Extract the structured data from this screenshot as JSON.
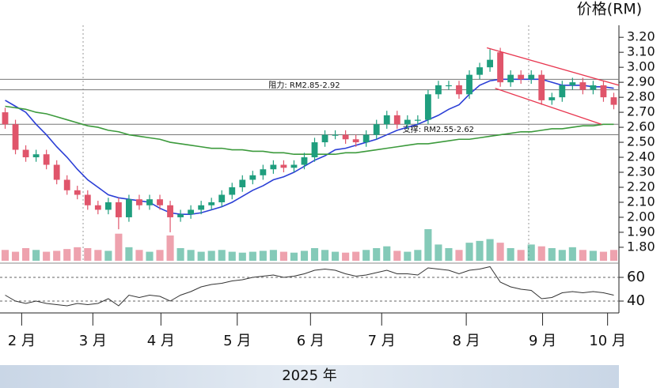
{
  "chart_data": {
    "type": "candlestick",
    "title": "价格(RM)",
    "footer": "2025 年",
    "xlim": [
      0,
      60
    ],
    "xticks": [
      {
        "value": 2.1,
        "label": "2 月"
      },
      {
        "value": 9.0,
        "label": "3 月"
      },
      {
        "value": 15.6,
        "label": "4 月"
      },
      {
        "value": 23.0,
        "label": "5 月"
      },
      {
        "value": 30.1,
        "label": "6 月"
      },
      {
        "value": 37.0,
        "label": "7 月"
      },
      {
        "value": 45.2,
        "label": "8 月"
      },
      {
        "value": 52.6,
        "label": "9 月"
      },
      {
        "value": 58.9,
        "label": "10 月"
      }
    ],
    "ylim": [
      1.71,
      3.28
    ],
    "yticks": [
      {
        "value": 1.8,
        "label": "1.80"
      },
      {
        "value": 1.9,
        "label": "1.90"
      },
      {
        "value": 2.0,
        "label": "2.00"
      },
      {
        "value": 2.1,
        "label": "2.10"
      },
      {
        "value": 2.2,
        "label": "2.20"
      },
      {
        "value": 2.3,
        "label": "2.30"
      },
      {
        "value": 2.4,
        "label": "2.40"
      },
      {
        "value": 2.5,
        "label": "2.50"
      },
      {
        "value": 2.6,
        "label": "2.60"
      },
      {
        "value": 2.7,
        "label": "2.70"
      },
      {
        "value": 2.8,
        "label": "2.80"
      },
      {
        "value": 2.9,
        "label": "2.90"
      },
      {
        "value": 3.0,
        "label": "3.00"
      },
      {
        "value": 3.1,
        "label": "3.10"
      },
      {
        "value": 3.2,
        "label": "3.20"
      }
    ],
    "up_color": "#1f9e7e",
    "down_color": "#e0556b",
    "open": [
      2.7,
      2.62,
      2.45,
      2.4,
      2.42,
      2.35,
      2.25,
      2.18,
      2.15,
      2.08,
      2.05,
      2.1,
      2.0,
      2.12,
      2.08,
      2.12,
      2.08,
      2.0,
      2.02,
      2.05,
      2.08,
      2.1,
      2.15,
      2.2,
      2.25,
      2.28,
      2.32,
      2.35,
      2.33,
      2.35,
      2.4,
      2.5,
      2.55,
      2.55,
      2.52,
      2.5,
      2.55,
      2.62,
      2.68,
      2.62,
      2.65,
      2.65,
      2.82,
      2.88,
      2.88,
      2.82,
      2.95,
      3.0,
      3.1,
      2.9,
      2.95,
      2.92,
      2.95,
      2.78,
      2.8,
      2.88,
      2.9,
      2.85,
      2.88,
      2.8
    ],
    "high": [
      2.73,
      2.65,
      2.48,
      2.45,
      2.45,
      2.38,
      2.28,
      2.21,
      2.18,
      2.11,
      2.13,
      2.13,
      2.15,
      2.15,
      2.15,
      2.15,
      2.11,
      2.05,
      2.08,
      2.11,
      2.13,
      2.18,
      2.23,
      2.28,
      2.31,
      2.35,
      2.38,
      2.38,
      2.38,
      2.43,
      2.53,
      2.58,
      2.58,
      2.58,
      2.55,
      2.58,
      2.65,
      2.71,
      2.71,
      2.68,
      2.68,
      2.85,
      2.91,
      2.91,
      2.91,
      2.98,
      3.03,
      3.12,
      3.13,
      2.98,
      2.98,
      2.98,
      2.98,
      2.83,
      2.91,
      2.93,
      2.93,
      2.91,
      2.91,
      2.83
    ],
    "low": [
      2.59,
      2.42,
      2.37,
      2.37,
      2.32,
      2.22,
      2.15,
      2.12,
      2.05,
      2.02,
      2.02,
      1.92,
      1.97,
      2.05,
      2.05,
      2.05,
      1.9,
      1.97,
      1.99,
      2.02,
      2.05,
      2.07,
      2.12,
      2.17,
      2.22,
      2.25,
      2.29,
      2.3,
      2.3,
      2.32,
      2.37,
      2.47,
      2.52,
      2.49,
      2.47,
      2.47,
      2.52,
      2.59,
      2.59,
      2.59,
      2.62,
      2.62,
      2.79,
      2.85,
      2.79,
      2.79,
      2.92,
      2.97,
      2.87,
      2.87,
      2.89,
      2.89,
      2.75,
      2.75,
      2.77,
      2.85,
      2.82,
      2.82,
      2.77,
      2.72
    ],
    "close": [
      2.62,
      2.45,
      2.4,
      2.42,
      2.35,
      2.25,
      2.18,
      2.15,
      2.08,
      2.05,
      2.1,
      2.0,
      2.12,
      2.08,
      2.12,
      2.08,
      2.0,
      2.02,
      2.05,
      2.08,
      2.1,
      2.15,
      2.2,
      2.25,
      2.28,
      2.32,
      2.35,
      2.33,
      2.35,
      2.4,
      2.5,
      2.55,
      2.55,
      2.52,
      2.5,
      2.55,
      2.62,
      2.68,
      2.62,
      2.65,
      2.65,
      2.82,
      2.88,
      2.88,
      2.82,
      2.95,
      3.0,
      3.05,
      2.9,
      2.95,
      2.92,
      2.95,
      2.78,
      2.8,
      2.88,
      2.9,
      2.85,
      2.88,
      2.8,
      2.75
    ],
    "series": [
      {
        "color": "#2b3fd6",
        "values": [
          2.78,
          2.74,
          2.7,
          2.62,
          2.55,
          2.47,
          2.4,
          2.32,
          2.25,
          2.2,
          2.15,
          2.13,
          2.12,
          2.11,
          2.1,
          2.06,
          2.03,
          2.02,
          2.02,
          2.03,
          2.05,
          2.07,
          2.1,
          2.14,
          2.18,
          2.21,
          2.25,
          2.27,
          2.3,
          2.34,
          2.38,
          2.41,
          2.45,
          2.46,
          2.48,
          2.5,
          2.52,
          2.55,
          2.58,
          2.6,
          2.62,
          2.65,
          2.68,
          2.72,
          2.75,
          2.82,
          2.88,
          2.91,
          2.92,
          2.92,
          2.92,
          2.92,
          2.92,
          2.9,
          2.88,
          2.88,
          2.88,
          2.87,
          2.87,
          2.86
        ]
      },
      {
        "color": "#3c9a3c",
        "values": [
          2.74,
          2.73,
          2.72,
          2.7,
          2.69,
          2.67,
          2.65,
          2.63,
          2.61,
          2.6,
          2.58,
          2.57,
          2.55,
          2.54,
          2.53,
          2.52,
          2.5,
          2.49,
          2.48,
          2.47,
          2.46,
          2.46,
          2.45,
          2.45,
          2.44,
          2.44,
          2.43,
          2.43,
          2.42,
          2.42,
          2.42,
          2.42,
          2.42,
          2.43,
          2.43,
          2.44,
          2.45,
          2.46,
          2.47,
          2.48,
          2.49,
          2.49,
          2.5,
          2.51,
          2.52,
          2.52,
          2.53,
          2.54,
          2.55,
          2.56,
          2.57,
          2.57,
          2.58,
          2.59,
          2.59,
          2.6,
          2.61,
          2.61,
          2.62,
          2.62
        ]
      }
    ],
    "levels": [
      2.92,
      2.85,
      2.62,
      2.55
    ],
    "annotations": [
      {
        "text": "阻力: RM2.85-2.92",
        "x": 29.5,
        "y": 2.88
      },
      {
        "text": "支撑: RM2.55-2.62",
        "x": 42.5,
        "y": 2.585
      }
    ],
    "trend_lines": [
      {
        "color": "#e8364f",
        "x": [
          47.2,
          60
        ],
        "y": [
          3.13,
          2.88
        ]
      },
      {
        "color": "#e8364f",
        "x": [
          48,
          58.3
        ],
        "y": [
          2.86,
          2.62
        ]
      }
    ],
    "volume": [
      12,
      10,
      14,
      12,
      10,
      11,
      13,
      15,
      14,
      12,
      11,
      30,
      15,
      12,
      10,
      12,
      28,
      14,
      12,
      10,
      11,
      12,
      10,
      9,
      10,
      11,
      12,
      10,
      9,
      11,
      14,
      12,
      10,
      9,
      10,
      12,
      14,
      16,
      11,
      10,
      12,
      35,
      18,
      14,
      12,
      20,
      22,
      24,
      20,
      14,
      12,
      18,
      16,
      14,
      12,
      15,
      12,
      11,
      10,
      12
    ],
    "rsi": {
      "color": "#333333",
      "ylim": [
        30,
        70
      ],
      "yticks": [
        40,
        60
      ],
      "levels": [
        40,
        60
      ],
      "values": [
        45,
        40,
        38,
        40,
        38,
        37,
        36,
        38,
        37,
        38,
        42,
        36,
        45,
        43,
        45,
        44,
        40,
        45,
        48,
        52,
        54,
        55,
        57,
        58,
        60,
        61,
        62,
        60,
        61,
        63,
        66,
        67,
        66,
        63,
        61,
        62,
        64,
        66,
        63,
        63,
        62,
        68,
        67,
        66,
        63,
        66,
        67,
        69,
        56,
        52,
        50,
        49,
        42,
        43,
        47,
        48,
        47,
        48,
        47,
        45
      ]
    }
  }
}
